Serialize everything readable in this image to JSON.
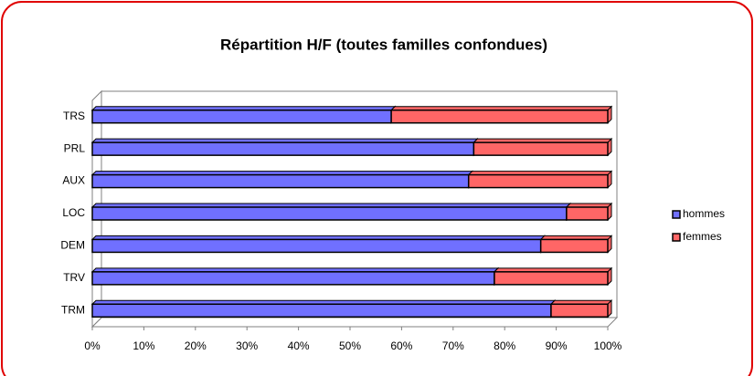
{
  "chart_data": {
    "type": "bar_stacked_horizontal",
    "title": "Répartition H/F (toutes familles confondues)",
    "categories": [
      "TRS",
      "PRL",
      "AUX",
      "LOC",
      "DEM",
      "TRV",
      "TRM"
    ],
    "series": [
      {
        "name": "hommes",
        "color": "#7070ff",
        "values": [
          58,
          74,
          73,
          92,
          87,
          78,
          89
        ]
      },
      {
        "name": "femmes",
        "color": "#ff6666",
        "values": [
          42,
          26,
          27,
          8,
          13,
          22,
          11
        ]
      }
    ],
    "xlim": [
      0,
      100
    ],
    "xticks": [
      {
        "value": 0,
        "label": "0%"
      },
      {
        "value": 10,
        "label": "10%"
      },
      {
        "value": 20,
        "label": "20%"
      },
      {
        "value": 30,
        "label": "30%"
      },
      {
        "value": 40,
        "label": "40%"
      },
      {
        "value": 50,
        "label": "50%"
      },
      {
        "value": 60,
        "label": "60%"
      },
      {
        "value": 70,
        "label": "70%"
      },
      {
        "value": 80,
        "label": "80%"
      },
      {
        "value": 90,
        "label": "90%"
      },
      {
        "value": 100,
        "label": "100%"
      }
    ],
    "legend": "right"
  }
}
